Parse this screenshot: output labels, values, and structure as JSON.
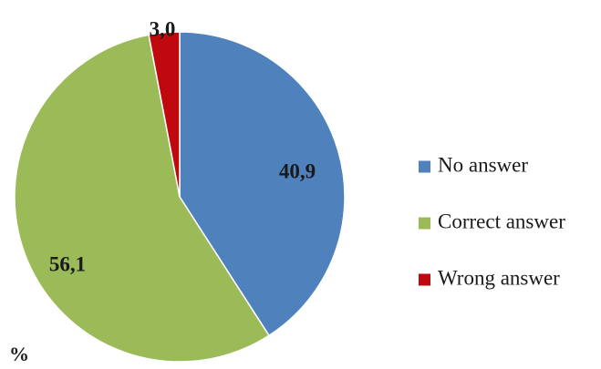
{
  "chart_data": {
    "type": "pie",
    "unit_label": "%",
    "slices": [
      {
        "label": "No answer",
        "value": 40.9,
        "value_label": "40,9",
        "color": "#4f81bd"
      },
      {
        "label": "Correct answer",
        "value": 56.1,
        "value_label": "56,1",
        "color": "#9bbb59"
      },
      {
        "label": "Wrong answer",
        "value": 3.0,
        "value_label": "3,0",
        "color": "#c0080f"
      }
    ],
    "legend_position": "right"
  }
}
